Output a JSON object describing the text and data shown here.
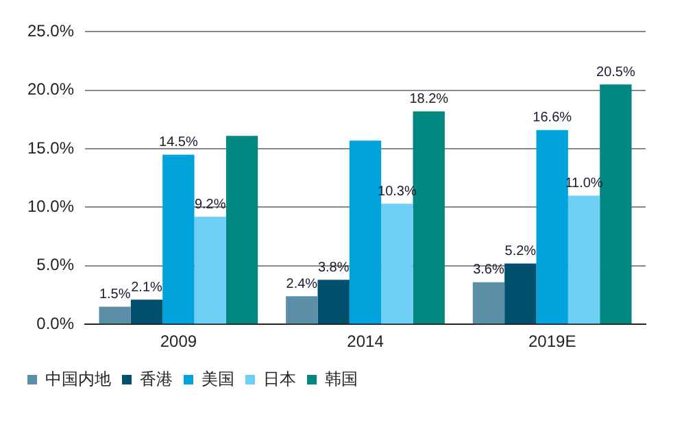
{
  "chart_data": {
    "type": "bar",
    "categories": [
      "2009",
      "2014",
      "2019E"
    ],
    "series": [
      {
        "name": "中国内地",
        "color": "#5b8fa8",
        "values": [
          1.5,
          2.4,
          3.6
        ],
        "value_labels": [
          "1.5%",
          "2.4%",
          "3.6%"
        ]
      },
      {
        "name": "香港",
        "color": "#00506e",
        "values": [
          2.1,
          3.8,
          5.2
        ],
        "value_labels": [
          "2.1%",
          "3.8%",
          "5.2%"
        ]
      },
      {
        "name": "美国",
        "color": "#00a3dc",
        "values": [
          14.5,
          15.7,
          16.6
        ],
        "value_labels": [
          "14.5%",
          null,
          "16.6%"
        ]
      },
      {
        "name": "日本",
        "color": "#6dcff6",
        "values": [
          9.2,
          10.3,
          11.0
        ],
        "value_labels": [
          "9.2%",
          "10.3%",
          "11.0%"
        ]
      },
      {
        "name": "韩国",
        "color": "#00877f",
        "values": [
          16.1,
          18.2,
          20.5
        ],
        "value_labels": [
          null,
          "18.2%",
          "20.5%"
        ]
      }
    ],
    "ylim": [
      0,
      25
    ],
    "yticks": [
      {
        "value": 0,
        "label": "0.0%"
      },
      {
        "value": 5,
        "label": "5.0%"
      },
      {
        "value": 10,
        "label": "10.0%"
      },
      {
        "value": 15,
        "label": "15.0%"
      },
      {
        "value": 20,
        "label": "20.0%"
      },
      {
        "value": 25,
        "label": "25.0%"
      }
    ],
    "grid": "y",
    "legend": "bottom left"
  }
}
